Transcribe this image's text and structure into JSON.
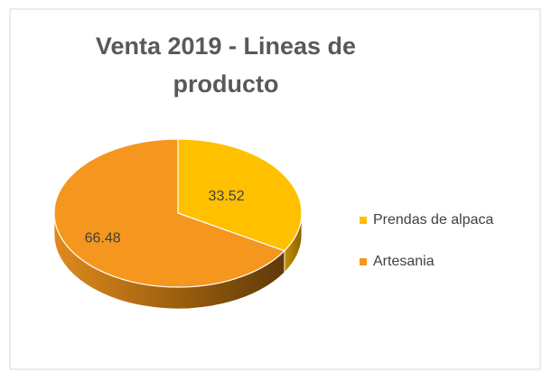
{
  "chart_data": {
    "type": "pie3d",
    "title": "Venta 2019 - Lineas de producto",
    "categories": [
      "Prendas de alpaca",
      "Artesania"
    ],
    "values": [
      33.52,
      66.48
    ],
    "colors": [
      "#FFC000",
      "#F5961E"
    ],
    "legend": "right"
  }
}
